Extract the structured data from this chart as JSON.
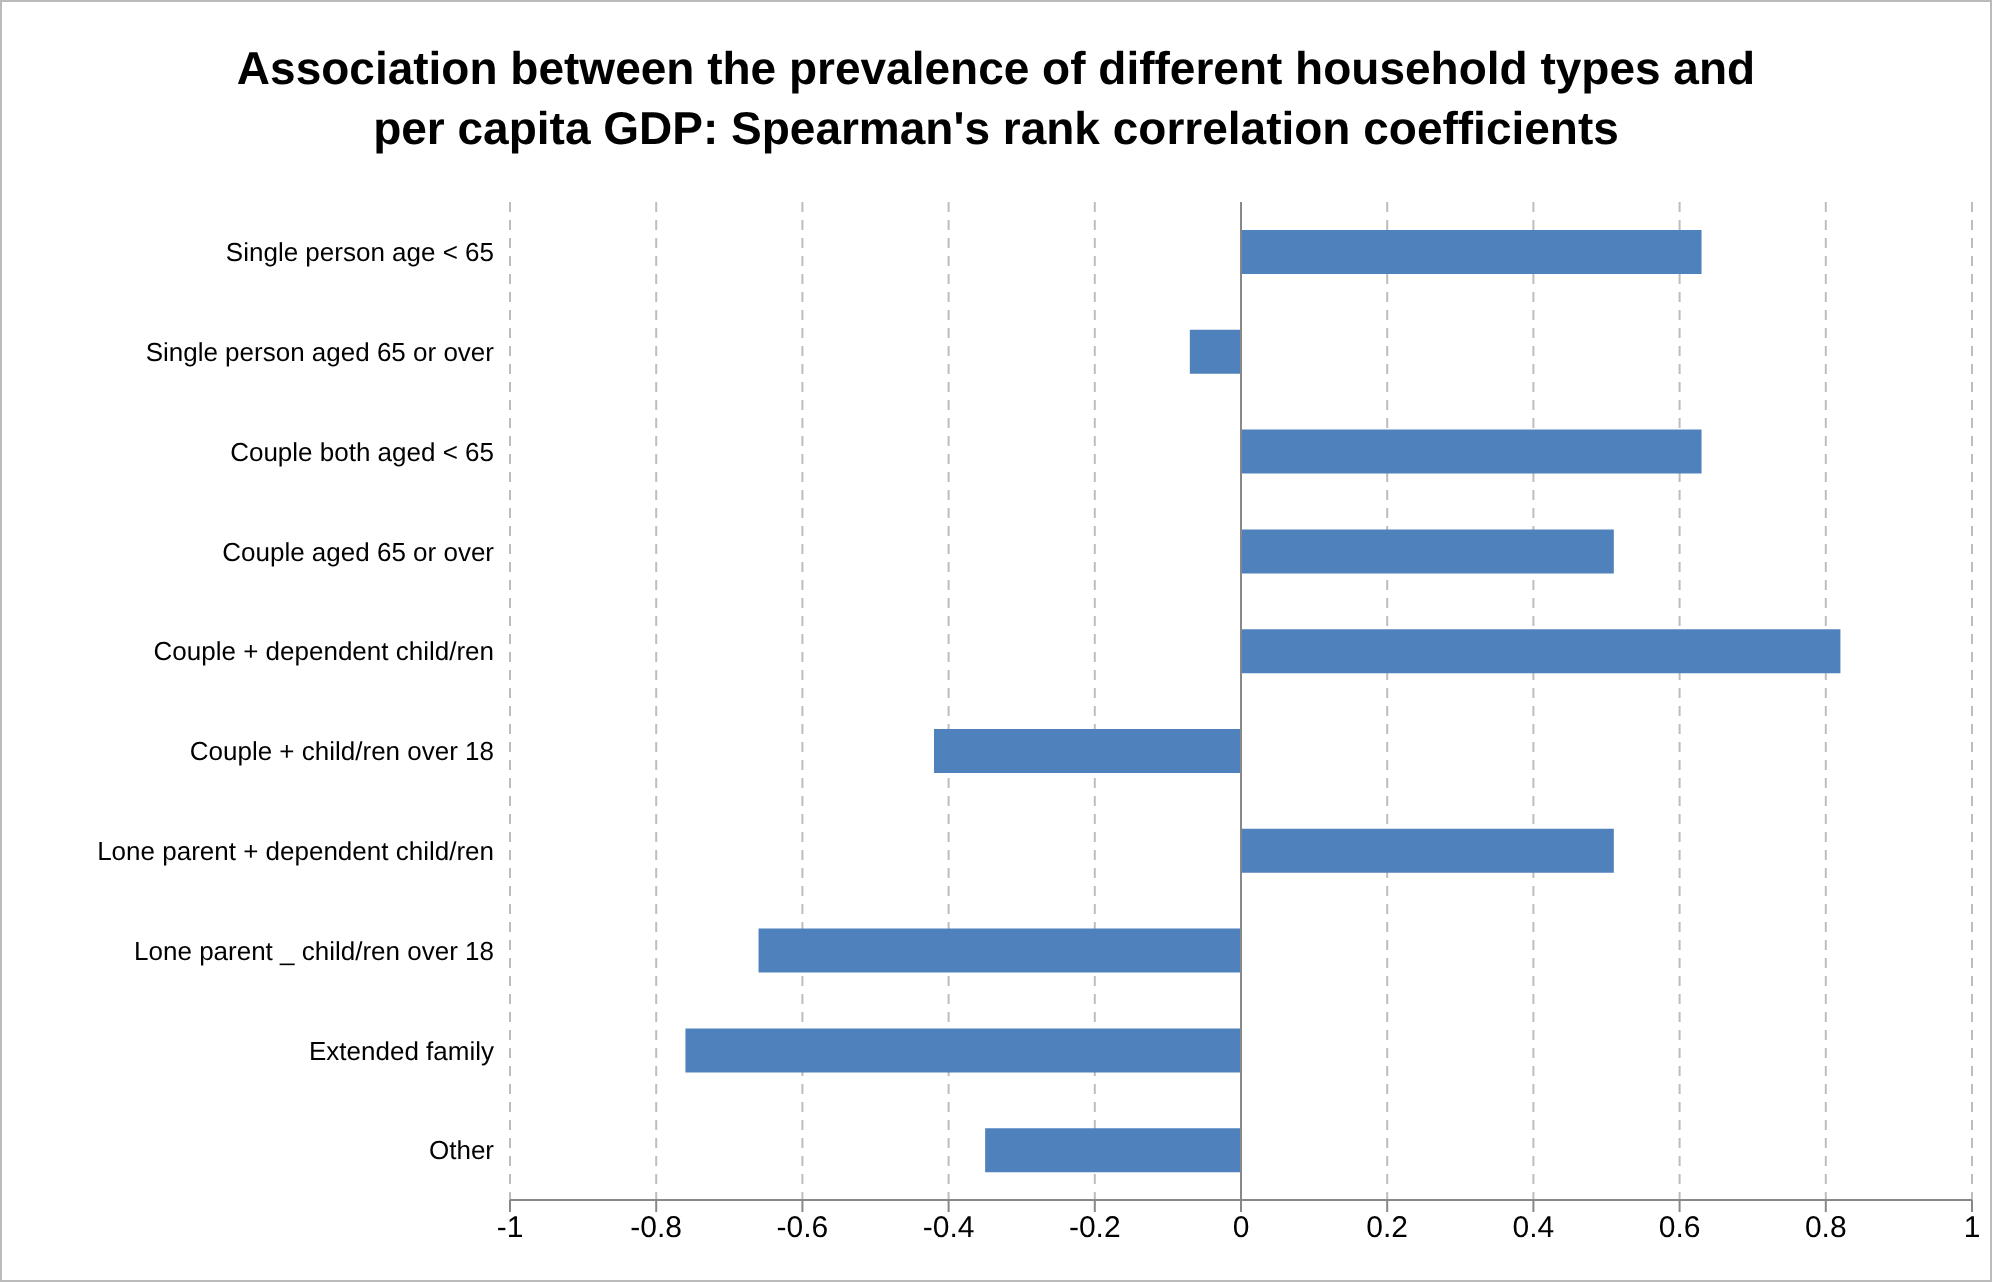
{
  "chart_data": {
    "type": "bar",
    "orientation": "horizontal",
    "title": "Association between the prevalence of different household types and per capita GDP: Spearman's rank correlation coefficients",
    "categories": [
      "Single person age < 65",
      "Single person aged 65 or over",
      "Couple both aged < 65",
      "Couple aged 65 or over",
      "Couple + dependent child/ren",
      "Couple + child/ren over 18",
      "Lone parent + dependent child/ren",
      "Lone parent _ child/ren over 18",
      "Extended family",
      "Other"
    ],
    "values": [
      0.63,
      -0.07,
      0.63,
      0.51,
      0.82,
      -0.42,
      0.51,
      -0.66,
      -0.76,
      -0.35
    ],
    "color": "#4f81bd",
    "xlim": [
      -1,
      1
    ],
    "xticks": [
      -1,
      -0.8,
      -0.6,
      -0.4,
      -0.2,
      0,
      0.2,
      0.4,
      0.6,
      0.8,
      1
    ],
    "grid": "x"
  }
}
